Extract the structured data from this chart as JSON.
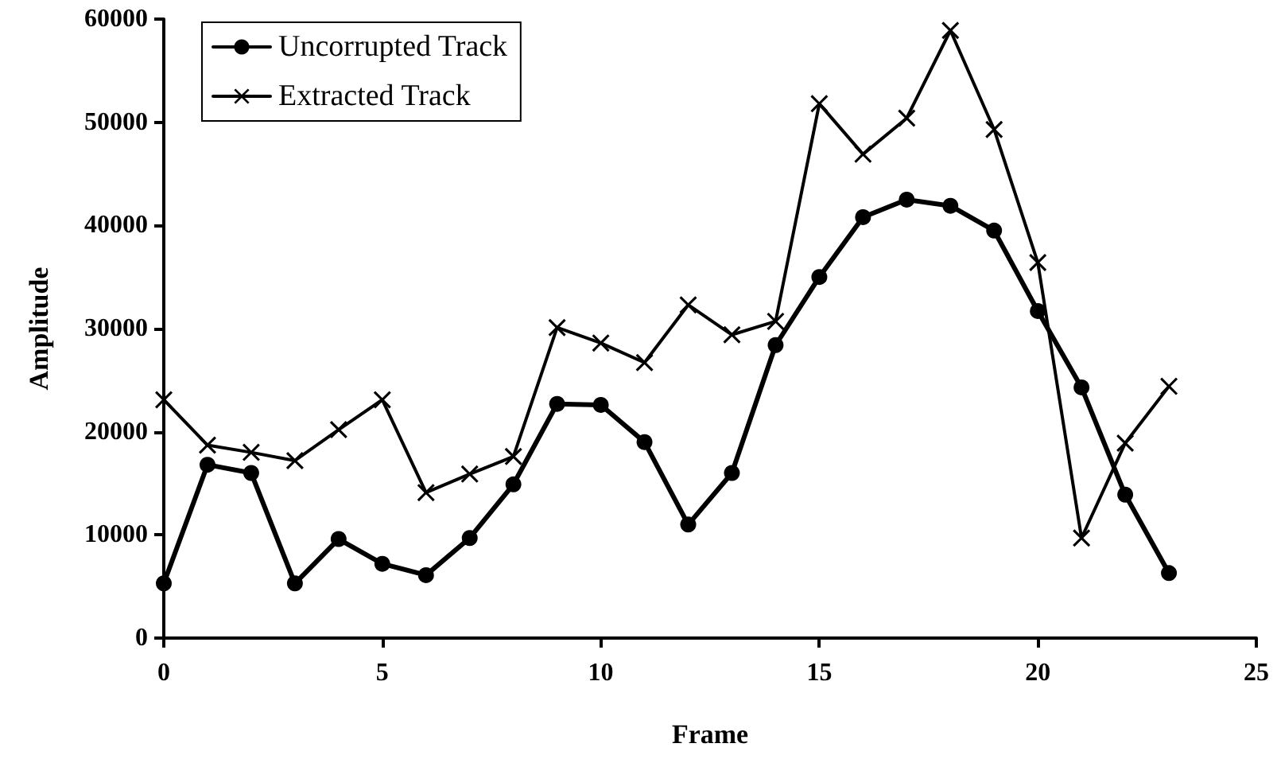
{
  "chart_data": {
    "type": "line",
    "xlabel": "Frame",
    "ylabel": "Amplitude",
    "x": [
      0,
      1,
      2,
      3,
      4,
      5,
      6,
      7,
      8,
      9,
      10,
      11,
      12,
      13,
      14,
      15,
      16,
      17,
      18,
      19,
      20,
      21,
      22,
      23
    ],
    "xlim": [
      0,
      25
    ],
    "xticks": [
      0,
      5,
      10,
      15,
      20,
      25
    ],
    "ylim": [
      0,
      60000
    ],
    "yticks": [
      0,
      10000,
      20000,
      30000,
      40000,
      50000,
      60000
    ],
    "grid": false,
    "legend": "top left",
    "line_style": "solid",
    "series": [
      {
        "name": "Uncorrupted Track",
        "color": "#000000",
        "marker": "circle",
        "values": [
          5300,
          16800,
          16000,
          5300,
          9600,
          7200,
          6100,
          9700,
          14900,
          22700,
          22600,
          19000,
          11000,
          16000,
          28400,
          35000,
          40800,
          42500,
          41900,
          39500,
          31700,
          24300,
          13900,
          6300
        ]
      },
      {
        "name": "Extracted Track",
        "color": "#000000",
        "marker": "cross",
        "values": [
          23100,
          18700,
          18000,
          17200,
          20200,
          23100,
          14100,
          15900,
          17600,
          30100,
          28600,
          26700,
          32300,
          29400,
          30700,
          51800,
          46900,
          50400,
          58900,
          49300,
          36400,
          9700,
          18900,
          24400
        ]
      }
    ]
  }
}
